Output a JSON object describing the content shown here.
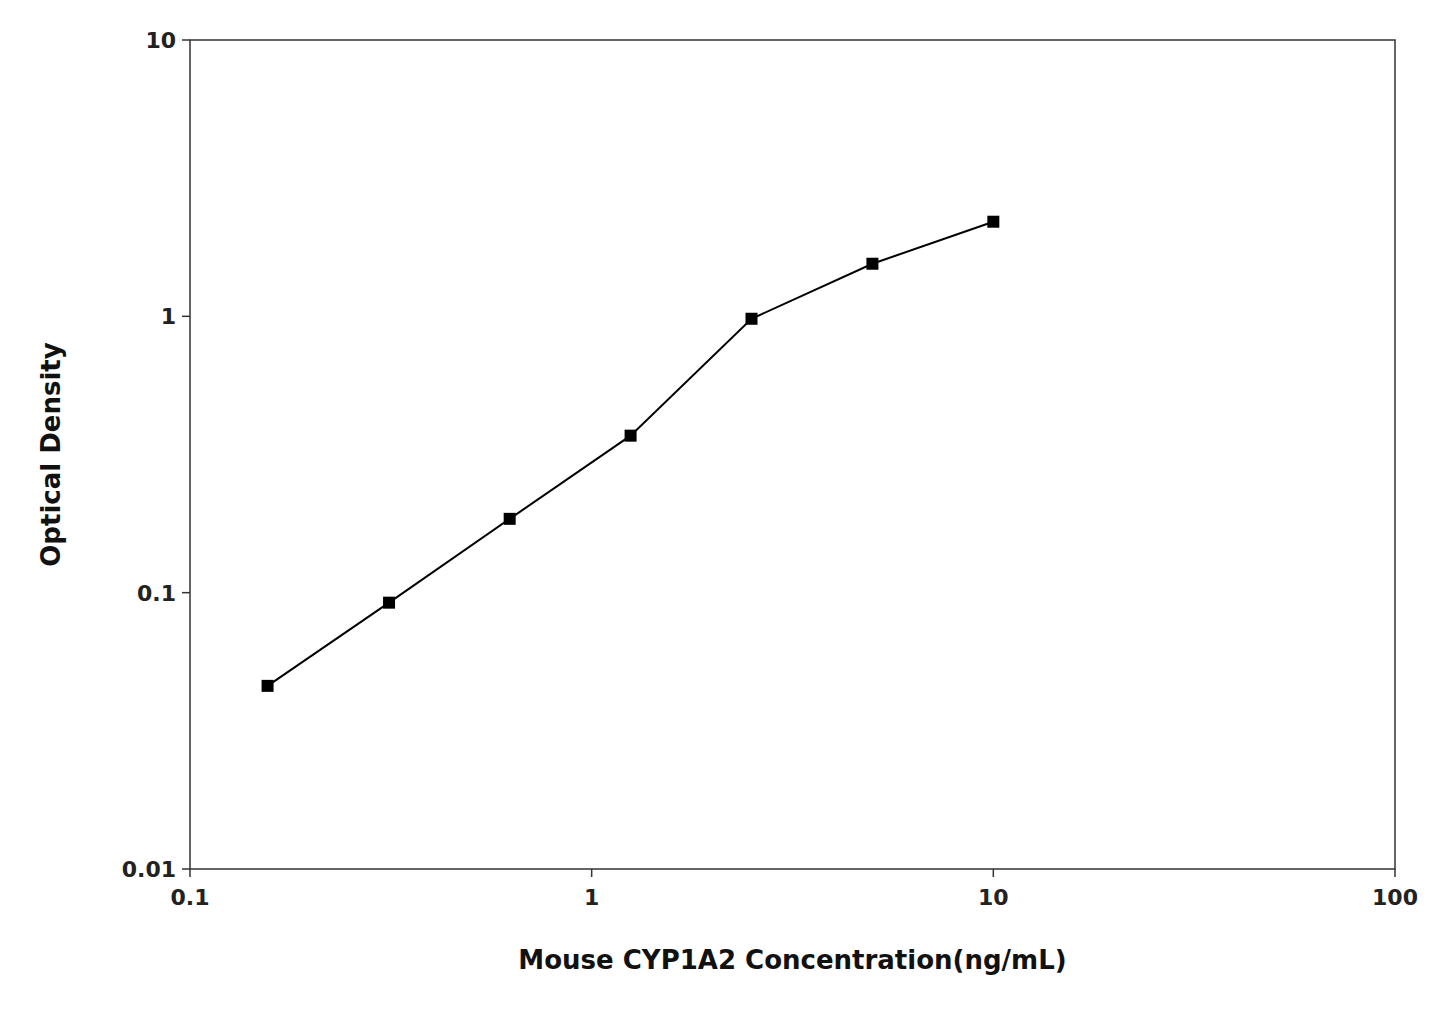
{
  "chart_data": {
    "type": "line",
    "x": [
      0.156,
      0.313,
      0.625,
      1.25,
      2.5,
      5.0,
      10.0
    ],
    "values": [
      0.046,
      0.092,
      0.185,
      0.37,
      0.98,
      1.55,
      2.2
    ],
    "color": "#000000",
    "marker": "square",
    "x_label": "Mouse CYP1A2 Concentration(ng/mL)",
    "y_label": "Optical Density",
    "log": true,
    "xlim": [
      0.1,
      100
    ],
    "ylim": [
      0.01,
      10
    ],
    "xticks": [
      0.1,
      1,
      10,
      100
    ],
    "yticks": [
      0.01,
      0.1,
      1,
      10
    ],
    "grid": false
  }
}
